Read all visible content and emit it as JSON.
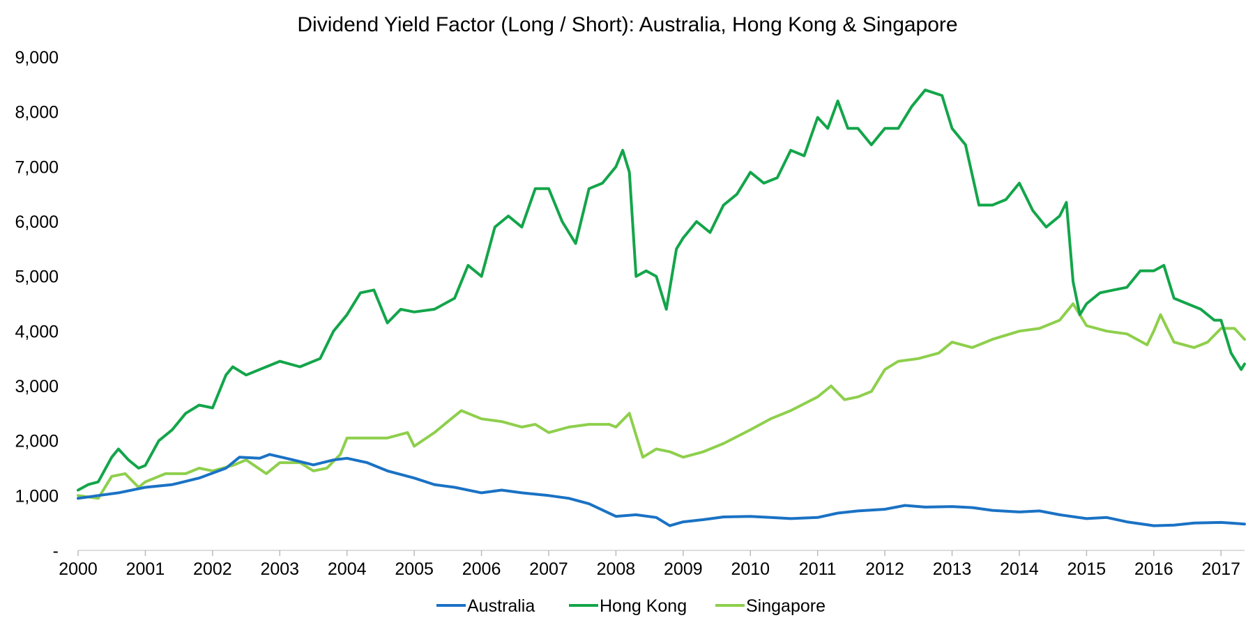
{
  "chart_data": {
    "type": "line",
    "title": "Dividend Yield Factor (Long / Short): Australia, Hong Kong & Singapore",
    "xlabel": "",
    "ylabel": "",
    "xlim": [
      2000,
      2017.35
    ],
    "ylim": [
      0,
      9000
    ],
    "x_ticks": [
      2000,
      2001,
      2002,
      2003,
      2004,
      2005,
      2006,
      2007,
      2008,
      2009,
      2010,
      2011,
      2012,
      2013,
      2014,
      2015,
      2016,
      2017
    ],
    "x_tick_labels": [
      "2000",
      "2001",
      "2002",
      "2003",
      "2004",
      "2005",
      "2006",
      "2007",
      "2008",
      "2009",
      "2010",
      "2011",
      "2012",
      "2013",
      "2014",
      "2015",
      "2016",
      "2017"
    ],
    "y_ticks": [
      0,
      1000,
      2000,
      3000,
      4000,
      5000,
      6000,
      7000,
      8000,
      9000
    ],
    "y_tick_labels": [
      "-",
      "1,000",
      "2,000",
      "3,000",
      "4,000",
      "5,000",
      "6,000",
      "7,000",
      "8,000",
      "9,000"
    ],
    "grid": false,
    "legend_position": "bottom",
    "series": [
      {
        "name": "Australia",
        "color": "#1a72c4",
        "x": [
          2000,
          2000.3,
          2000.6,
          2001,
          2001.4,
          2001.8,
          2002.2,
          2002.4,
          2002.7,
          2002.85,
          2003.2,
          2003.5,
          2003.8,
          2004,
          2004.3,
          2004.6,
          2005,
          2005.3,
          2005.6,
          2006,
          2006.3,
          2006.6,
          2007,
          2007.3,
          2007.6,
          2008,
          2008.3,
          2008.6,
          2008.8,
          2009,
          2009.3,
          2009.6,
          2010,
          2010.3,
          2010.6,
          2011,
          2011.3,
          2011.6,
          2012,
          2012.3,
          2012.6,
          2013,
          2013.3,
          2013.6,
          2014,
          2014.3,
          2014.6,
          2015,
          2015.3,
          2015.6,
          2016,
          2016.3,
          2016.6,
          2017,
          2017.35
        ],
        "values": [
          950,
          1000,
          1050,
          1150,
          1200,
          1320,
          1500,
          1700,
          1680,
          1750,
          1650,
          1560,
          1650,
          1680,
          1600,
          1450,
          1320,
          1200,
          1150,
          1050,
          1100,
          1050,
          1000,
          950,
          850,
          620,
          650,
          600,
          450,
          520,
          560,
          610,
          620,
          600,
          580,
          600,
          680,
          720,
          750,
          820,
          790,
          800,
          780,
          730,
          700,
          720,
          650,
          580,
          600,
          520,
          450,
          460,
          500,
          510,
          480
        ]
      },
      {
        "name": "Hong Kong",
        "color": "#13a54a",
        "x": [
          2000,
          2000.15,
          2000.3,
          2000.5,
          2000.6,
          2000.75,
          2000.9,
          2001,
          2001.2,
          2001.4,
          2001.6,
          2001.8,
          2002,
          2002.2,
          2002.3,
          2002.5,
          2002.8,
          2003,
          2003.3,
          2003.6,
          2003.8,
          2004,
          2004.2,
          2004.4,
          2004.6,
          2004.8,
          2005,
          2005.3,
          2005.6,
          2005.8,
          2006,
          2006.2,
          2006.4,
          2006.6,
          2006.8,
          2007,
          2007.2,
          2007.4,
          2007.6,
          2007.8,
          2008,
          2008.1,
          2008.2,
          2008.3,
          2008.45,
          2008.6,
          2008.75,
          2008.9,
          2009,
          2009.2,
          2009.4,
          2009.6,
          2009.8,
          2010,
          2010.2,
          2010.4,
          2010.6,
          2010.8,
          2011,
          2011.15,
          2011.3,
          2011.45,
          2011.6,
          2011.8,
          2012,
          2012.2,
          2012.4,
          2012.6,
          2012.85,
          2013,
          2013.2,
          2013.4,
          2013.6,
          2013.8,
          2014,
          2014.2,
          2014.4,
          2014.6,
          2014.7,
          2014.8,
          2014.9,
          2015,
          2015.2,
          2015.4,
          2015.6,
          2015.8,
          2016,
          2016.15,
          2016.3,
          2016.5,
          2016.7,
          2016.9,
          2017,
          2017.15,
          2017.3,
          2017.35
        ],
        "values": [
          1100,
          1200,
          1250,
          1700,
          1850,
          1650,
          1500,
          1550,
          2000,
          2200,
          2500,
          2650,
          2600,
          3200,
          3350,
          3200,
          3350,
          3450,
          3350,
          3500,
          4000,
          4300,
          4700,
          4750,
          4150,
          4400,
          4350,
          4400,
          4600,
          5200,
          5000,
          5900,
          6100,
          5900,
          6600,
          6600,
          6000,
          5600,
          6600,
          6700,
          7000,
          7300,
          6900,
          5000,
          5100,
          5000,
          4400,
          5500,
          5700,
          6000,
          5800,
          6300,
          6500,
          6900,
          6700,
          6800,
          7300,
          7200,
          7900,
          7700,
          8200,
          7700,
          7700,
          7400,
          7700,
          7700,
          8100,
          8400,
          8300,
          7700,
          7400,
          6300,
          6300,
          6400,
          6700,
          6200,
          5900,
          6100,
          6350,
          4900,
          4300,
          4500,
          4700,
          4750,
          4800,
          5100,
          5100,
          5200,
          4600,
          4500,
          4400,
          4200,
          4200,
          3600,
          3300,
          3400
        ]
      },
      {
        "name": "Singapore",
        "color": "#8ecf4c",
        "x": [
          2000,
          2000.3,
          2000.5,
          2000.7,
          2000.9,
          2001,
          2001.3,
          2001.6,
          2001.8,
          2002,
          2002.3,
          2002.5,
          2002.8,
          2003,
          2003.3,
          2003.5,
          2003.7,
          2003.9,
          2004,
          2004.3,
          2004.6,
          2004.9,
          2005,
          2005.3,
          2005.5,
          2005.7,
          2006,
          2006.3,
          2006.6,
          2006.8,
          2007,
          2007.3,
          2007.6,
          2007.9,
          2008,
          2008.2,
          2008.3,
          2008.4,
          2008.6,
          2008.8,
          2009,
          2009.3,
          2009.6,
          2010,
          2010.3,
          2010.6,
          2011,
          2011.2,
          2011.4,
          2011.6,
          2011.8,
          2012,
          2012.2,
          2012.5,
          2012.8,
          2013,
          2013.3,
          2013.6,
          2014,
          2014.3,
          2014.6,
          2014.8,
          2015,
          2015.3,
          2015.6,
          2015.9,
          2016,
          2016.1,
          2016.3,
          2016.6,
          2016.8,
          2017,
          2017.2,
          2017.35
        ],
        "values": [
          1000,
          950,
          1350,
          1400,
          1150,
          1250,
          1400,
          1400,
          1500,
          1450,
          1550,
          1650,
          1400,
          1600,
          1600,
          1450,
          1500,
          1750,
          2050,
          2050,
          2050,
          2150,
          1900,
          2150,
          2350,
          2550,
          2400,
          2350,
          2250,
          2300,
          2150,
          2250,
          2300,
          2300,
          2250,
          2500,
          2100,
          1700,
          1850,
          1800,
          1700,
          1800,
          1950,
          2200,
          2400,
          2550,
          2800,
          3000,
          2750,
          2800,
          2900,
          3300,
          3450,
          3500,
          3600,
          3800,
          3700,
          3850,
          4000,
          4050,
          4200,
          4500,
          4100,
          4000,
          3950,
          3750,
          4000,
          4300,
          3800,
          3700,
          3800,
          4050,
          4050,
          3850
        ]
      }
    ]
  }
}
